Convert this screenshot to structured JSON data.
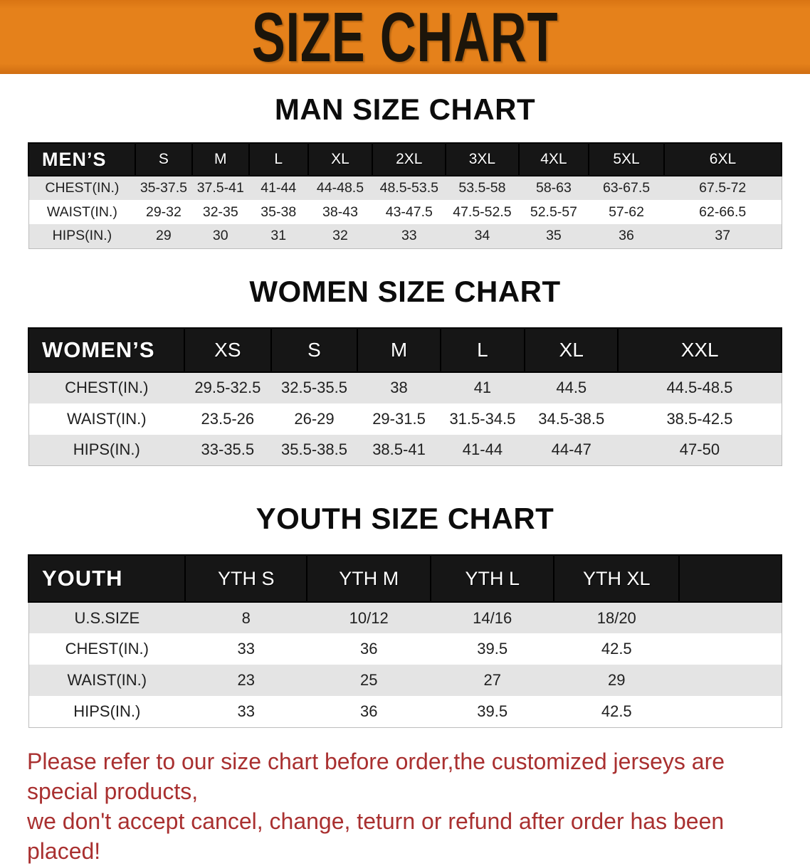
{
  "banner": {
    "title": "SIZE CHART",
    "bg_color": "#e5811b",
    "text_color": "#1c150a"
  },
  "colors": {
    "header_bar": "#161616",
    "stripe_row": "#e4e4e4",
    "disclaimer_red": "#a93030"
  },
  "sections": [
    {
      "title": "MAN SIZE CHART",
      "table": {
        "header": {
          "label": "MEN’S",
          "sizes": [
            "S",
            "M",
            "L",
            "XL",
            "2XL",
            "3XL",
            "4XL",
            "5XL",
            "6XL"
          ]
        },
        "rows": [
          {
            "label": "CHEST(IN.)",
            "values": [
              "35-37.5",
              "37.5-41",
              "41-44",
              "44-48.5",
              "48.5-53.5",
              "53.5-58",
              "58-63",
              "63-67.5",
              "67.5-72"
            ]
          },
          {
            "label": "WAIST(IN.)",
            "values": [
              "29-32",
              "32-35",
              "35-38",
              "38-43",
              "43-47.5",
              "47.5-52.5",
              "52.5-57",
              "57-62",
              "62-66.5"
            ]
          },
          {
            "label": "HIPS(IN.)",
            "values": [
              "29",
              "30",
              "31",
              "32",
              "33",
              "34",
              "35",
              "36",
              "37"
            ]
          }
        ]
      }
    },
    {
      "title": "WOMEN SIZE CHART",
      "table": {
        "header": {
          "label": "WOMEN’S",
          "sizes": [
            "XS",
            "S",
            "M",
            "L",
            "XL",
            "XXL"
          ]
        },
        "rows": [
          {
            "label": "CHEST(IN.)",
            "values": [
              "29.5-32.5",
              "32.5-35.5",
              "38",
              "41",
              "44.5",
              "44.5-48.5"
            ]
          },
          {
            "label": "WAIST(IN.)",
            "values": [
              "23.5-26",
              "26-29",
              "29-31.5",
              "31.5-34.5",
              "34.5-38.5",
              "38.5-42.5"
            ]
          },
          {
            "label": "HIPS(IN.)",
            "values": [
              "33-35.5",
              "35.5-38.5",
              "38.5-41",
              "41-44",
              "44-47",
              "47-50"
            ]
          }
        ]
      }
    },
    {
      "title": "YOUTH SIZE CHART",
      "table": {
        "header": {
          "label": "YOUTH",
          "sizes": [
            "YTH S",
            "YTH M",
            "YTH L",
            "YTH XL"
          ]
        },
        "rows": [
          {
            "label": "U.S.SIZE",
            "values": [
              "8",
              "10/12",
              "14/16",
              "18/20"
            ]
          },
          {
            "label": "CHEST(IN.)",
            "values": [
              "33",
              "36",
              "39.5",
              "42.5"
            ]
          },
          {
            "label": "WAIST(IN.)",
            "values": [
              "23",
              "25",
              "27",
              "29"
            ]
          },
          {
            "label": "HIPS(IN.)",
            "values": [
              "33",
              "36",
              "39.5",
              "42.5"
            ]
          }
        ]
      }
    }
  ],
  "disclaimer": {
    "line1": "Please refer to our size chart before order,the customized jerseys are special products,",
    "line2": "we don't accept cancel, change, teturn or refund after order has been placed!"
  }
}
